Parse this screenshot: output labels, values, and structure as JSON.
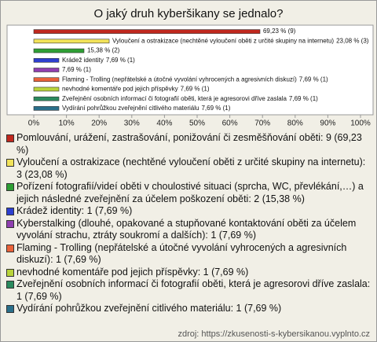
{
  "chart_data": {
    "type": "bar",
    "orientation": "horizontal",
    "title": "O jaký druh kyberšikany se jednalo?",
    "categories": [
      null,
      "Vyloučení a ostrakizace (nechtěné vyloučení oběti z určité skupiny na internetu)",
      null,
      "Krádež identity",
      null,
      "Flaming - Trolling (nepřátelské a útočné vyvolání vyhrocených a agresivních diskuzí)",
      "nevhodné komentáře pod jejich příspěvky",
      "Zveřejnění osobních informací či fotografií oběti, která je agresorovi dříve zaslala",
      "Vydírání pohrůžkou zveřejnění citlivého materiálu"
    ],
    "values": [
      69.23,
      23.08,
      15.38,
      7.69,
      7.69,
      7.69,
      7.69,
      7.69,
      7.69
    ],
    "value_labels": [
      "69,23 % (9)",
      "23,08 % (3)",
      "15,38 % (2)",
      "7,69 % (1)",
      "7,69 % (1)",
      "7,69 % (1)",
      "7,69 % (1)",
      "7,69 % (1)",
      "7,69 % (1)"
    ],
    "colors": [
      "#c0281e",
      "#f2e35a",
      "#2e9e34",
      "#2d3fd0",
      "#8f3fb0",
      "#e9623a",
      "#b9d43a",
      "#2a8a5e",
      "#2a6f8a"
    ],
    "xlim": [
      0,
      100
    ],
    "xticks": [
      {
        "value": 0,
        "label": "0%"
      },
      {
        "value": 10,
        "label": "10%"
      },
      {
        "value": 20,
        "label": "20%"
      },
      {
        "value": 30,
        "label": "30%"
      },
      {
        "value": 40,
        "label": "40%"
      },
      {
        "value": 50,
        "label": "50%"
      },
      {
        "value": 60,
        "label": "60%"
      },
      {
        "value": 70,
        "label": "70%"
      },
      {
        "value": 80,
        "label": "80%"
      },
      {
        "value": 90,
        "label": "90%"
      },
      {
        "value": 100,
        "label": "100%"
      }
    ],
    "legend": [
      "Pomlouvání, urážení, zastrašování, ponižování či zesměšňování oběti: 9 (69,23 %)",
      "Vyloučení a ostrakizace (nechtěné vyloučení oběti z určité skupiny na internetu): 3 (23,08 %)",
      "Pořízení fotografií/videí oběti v choulostivé situaci (sprcha, WC, převlékání,…) a jejich následné zveřejnění za účelem poškození oběti: 2 (15,38 %)",
      "Krádež identity: 1 (7,69 %)",
      "Kyberstalking (dlouhé, opakované a stupňované kontaktování oběti za účelem vyvolání strachu, ztráty soukromí a dalších): 1 (7,69 %)",
      "Flaming - Trolling (nepřátelské a útočné vyvolání vyhrocených a agresivních diskuzí): 1 (7,69 %)",
      "nevhodné komentáře pod jejich příspěvky: 1 (7,69 %)",
      "Zveřejnění osobních informací či fotografií oběti, která je agresorovi dříve zaslala: 1 (7,69 %)",
      "Vydírání pohrůžkou zveřejnění citlivého materiálu: 1 (7,69 %)"
    ],
    "source": "zdroj: https://zkusenosti-s-kybersikanou.vyplnto.cz"
  }
}
